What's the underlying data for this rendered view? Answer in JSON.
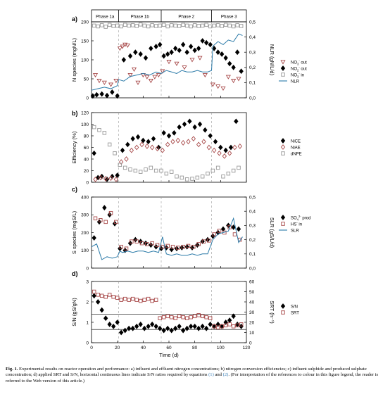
{
  "caption": {
    "label": "Fig. 1.",
    "text_before": " Experimental results on reactor operation and performance: a) influent and effluent nitrogen concentrations; b) nitrogen conversion efficiencies; c) influent sulphide and produced sulphate concentration; d) applied SRT and S/N, horizontal continuous lines indicate S/N ratios required by equations ",
    "ref1": "(1)",
    "and": " and ",
    "ref2": "(2)",
    "text_after": ". (For interpretation of the references to colour in this figure legend, the reader is referred to the Web version of this article.)"
  },
  "chart_data": [
    {
      "panel": "a)",
      "type": "scatter",
      "phases": [
        "Phase 1a",
        "Phase 1b",
        "Phase 2",
        "Phase 3"
      ],
      "phase_boundaries": [
        21,
        54,
        93
      ],
      "xlim": [
        0,
        120
      ],
      "xticks": [
        "0",
        "20",
        "40",
        "60",
        "80",
        "100",
        "120"
      ],
      "ylabel": "N species (mgN/L)",
      "ylim": [
        0,
        200
      ],
      "yticks": [
        "0",
        "50",
        "100",
        "150",
        "200"
      ],
      "y2label": "NLR (gN/L/d)",
      "y2lim": [
        0,
        0.5
      ],
      "y2ticks": [
        "0,0",
        "0,1",
        "0,2",
        "0,3",
        "0,4",
        "0,5"
      ],
      "legend": [
        "NO3- out",
        "NO2- out",
        "NO3- in",
        "NLR"
      ],
      "series": [
        {
          "name": "NO3- out",
          "marker": "triangle-down",
          "color": "#a84a4a",
          "x": [
            3,
            6,
            10,
            15,
            19,
            22,
            24,
            26,
            28,
            30,
            33,
            36,
            40,
            43,
            46,
            49,
            52,
            55,
            60,
            66,
            72,
            78,
            84,
            88,
            94,
            98,
            102,
            106,
            110,
            114
          ],
          "y": [
            60,
            45,
            40,
            35,
            45,
            130,
            135,
            140,
            138,
            60,
            75,
            40,
            60,
            55,
            45,
            55,
            60,
            70,
            95,
            90,
            80,
            100,
            105,
            60,
            35,
            30,
            25,
            55,
            45,
            50
          ]
        },
        {
          "name": "NO2- out",
          "marker": "diamond",
          "color": "#000000",
          "x": [
            1,
            4,
            8,
            12,
            16,
            20,
            25,
            30,
            34,
            38,
            42,
            46,
            50,
            53,
            56,
            59,
            62,
            65,
            68,
            71,
            74,
            77,
            80,
            83,
            86,
            89,
            92,
            95,
            98,
            101,
            104,
            107,
            110,
            113,
            116
          ],
          "y": [
            5,
            8,
            10,
            6,
            15,
            5,
            100,
            110,
            120,
            115,
            105,
            130,
            135,
            140,
            110,
            115,
            120,
            130,
            125,
            140,
            120,
            135,
            125,
            130,
            150,
            145,
            140,
            130,
            120,
            115,
            105,
            90,
            80,
            120,
            70
          ]
        },
        {
          "name": "NO3- in",
          "marker": "square",
          "color": "#9a9a9a",
          "x": [
            2,
            5,
            8,
            11,
            14,
            17,
            20,
            23,
            26,
            29,
            32,
            35,
            38,
            41,
            44,
            47,
            50,
            53,
            56,
            59,
            62,
            65,
            68,
            71,
            74,
            77,
            80,
            83,
            86,
            89,
            92,
            95,
            98,
            101,
            104,
            107,
            110,
            113,
            116
          ],
          "y": [
            190,
            188,
            191,
            187,
            192,
            189,
            190,
            188,
            192,
            190,
            191,
            189,
            193,
            190,
            188,
            191,
            189,
            190,
            192,
            188,
            191,
            190,
            189,
            192,
            190,
            188,
            191,
            189,
            190,
            192,
            188,
            190,
            191,
            189,
            192,
            190,
            188,
            191,
            189
          ]
        },
        {
          "name": "NLR",
          "line": true,
          "color": "#2b7aa8",
          "axis": "y2",
          "x": [
            0,
            5,
            10,
            15,
            20,
            21,
            25,
            30,
            35,
            40,
            45,
            50,
            54,
            58,
            62,
            66,
            70,
            74,
            78,
            82,
            86,
            90,
            93,
            94,
            98,
            102,
            106,
            110,
            114,
            117
          ],
          "y": [
            0.05,
            0.06,
            0.07,
            0.06,
            0.08,
            0.12,
            0.11,
            0.14,
            0.15,
            0.16,
            0.15,
            0.17,
            0.16,
            0.18,
            0.17,
            0.16,
            0.18,
            0.17,
            0.17,
            0.18,
            0.17,
            0.17,
            0.18,
            0.34,
            0.37,
            0.35,
            0.38,
            0.37,
            0.42,
            0.41
          ]
        }
      ]
    },
    {
      "panel": "b)",
      "type": "scatter",
      "xlim": [
        0,
        120
      ],
      "xticks": [
        "0",
        "20",
        "40",
        "60",
        "80",
        "100",
        "120"
      ],
      "ylabel": "Efficiency (%)",
      "ylim": [
        0,
        120
      ],
      "yticks": [
        "0",
        "20",
        "40",
        "60",
        "80",
        "100",
        "120"
      ],
      "legend": [
        "NiCE",
        "NiAE",
        "dNPE"
      ],
      "series": [
        {
          "name": "NiCE",
          "marker": "diamond",
          "color": "#000000",
          "x": [
            2,
            5,
            8,
            12,
            16,
            20,
            24,
            28,
            32,
            36,
            40,
            44,
            48,
            52,
            56,
            60,
            64,
            68,
            72,
            76,
            80,
            84,
            88,
            92,
            96,
            100,
            104,
            108,
            112
          ],
          "y": [
            50,
            8,
            10,
            5,
            10,
            12,
            55,
            65,
            75,
            78,
            72,
            70,
            75,
            60,
            85,
            80,
            85,
            95,
            100,
            105,
            95,
            100,
            90,
            80,
            70,
            60,
            55,
            60,
            105
          ]
        },
        {
          "name": "NiAE",
          "marker": "diamond-open",
          "color": "#a84a4a",
          "x": [
            3,
            7,
            11,
            15,
            19,
            23,
            27,
            31,
            35,
            39,
            43,
            47,
            51,
            55,
            59,
            63,
            67,
            71,
            75,
            79,
            83,
            87,
            91,
            95,
            99,
            103,
            107,
            111,
            115
          ],
          "y": [
            5,
            8,
            6,
            7,
            5,
            35,
            40,
            55,
            60,
            65,
            62,
            60,
            58,
            55,
            65,
            70,
            72,
            68,
            70,
            75,
            65,
            70,
            60,
            55,
            50,
            45,
            50,
            60,
            62
          ]
        },
        {
          "name": "dNPE",
          "marker": "square",
          "color": "#9a9a9a",
          "x": [
            2,
            6,
            10,
            14,
            18,
            22,
            26,
            30,
            34,
            38,
            42,
            46,
            50,
            54,
            58,
            62,
            66,
            70,
            74,
            78,
            82,
            86,
            90,
            94,
            98,
            102,
            106,
            110,
            114
          ],
          "y": [
            95,
            90,
            85,
            65,
            50,
            30,
            25,
            22,
            20,
            18,
            22,
            25,
            20,
            20,
            15,
            18,
            10,
            8,
            5,
            6,
            8,
            10,
            15,
            20,
            25,
            10,
            15,
            20,
            25
          ]
        }
      ]
    },
    {
      "panel": "c)",
      "type": "scatter",
      "xlim": [
        0,
        120
      ],
      "xticks": [
        "0",
        "20",
        "40",
        "60",
        "80",
        "100",
        "120"
      ],
      "ylabel": "S species (mgS/L)",
      "ylim": [
        0,
        400
      ],
      "yticks": [
        "0",
        "100",
        "200",
        "300",
        "400"
      ],
      "y2label": "SLR (gS/L/d)",
      "y2lim": [
        0,
        0.5
      ],
      "y2ticks": [
        "0,0",
        "0,1",
        "0,2",
        "0,3",
        "0,4",
        "0,5"
      ],
      "legend": [
        "SO4 2- prod",
        "HS- in",
        "SLR"
      ],
      "series": [
        {
          "name": "SO4 2- prod",
          "marker": "diamond",
          "color": "#000000",
          "x": [
            2,
            6,
            10,
            14,
            18,
            22,
            26,
            30,
            34,
            38,
            42,
            46,
            50,
            54,
            58,
            62,
            66,
            70,
            74,
            78,
            82,
            86,
            90,
            94,
            98,
            102,
            106,
            110,
            114
          ],
          "y": [
            170,
            260,
            340,
            300,
            250,
            110,
            100,
            140,
            160,
            150,
            140,
            130,
            120,
            110,
            115,
            105,
            110,
            115,
            120,
            115,
            130,
            150,
            160,
            180,
            200,
            220,
            240,
            230,
            220
          ]
        },
        {
          "name": "HS- in",
          "marker": "square",
          "color": "#a84a4a",
          "x": [
            3,
            7,
            11,
            15,
            19,
            23,
            27,
            31,
            35,
            39,
            43,
            47,
            51,
            55,
            59,
            63,
            67,
            71,
            75,
            79,
            83,
            87,
            91,
            95,
            99,
            103,
            107,
            111,
            115
          ],
          "y": [
            280,
            270,
            260,
            310,
            260,
            120,
            110,
            150,
            150,
            140,
            135,
            140,
            130,
            120,
            125,
            120,
            115,
            120,
            125,
            120,
            135,
            150,
            155,
            190,
            210,
            200,
            230,
            190,
            160
          ]
        },
        {
          "name": "SLR",
          "line": true,
          "color": "#2b7aa8",
          "axis": "y2",
          "x": [
            0,
            4,
            8,
            12,
            16,
            20,
            22,
            24,
            28,
            32,
            36,
            40,
            44,
            48,
            52,
            55,
            58,
            62,
            66,
            70,
            74,
            78,
            82,
            86,
            90,
            94,
            98,
            102,
            106,
            110,
            114,
            117
          ],
          "y": [
            0.15,
            0.17,
            0.06,
            0.08,
            0.07,
            0.08,
            0.12,
            0.11,
            0.12,
            0.11,
            0.12,
            0.12,
            0.11,
            0.12,
            0.11,
            0.22,
            0.1,
            0.09,
            0.1,
            0.09,
            0.09,
            0.1,
            0.09,
            0.1,
            0.1,
            0.2,
            0.24,
            0.25,
            0.26,
            0.35,
            0.18,
            0.22
          ]
        }
      ]
    },
    {
      "panel": "d)",
      "type": "scatter",
      "xlabel": "Time (d)",
      "xlim": [
        0,
        120
      ],
      "xticks": [
        "0",
        "20",
        "40",
        "60",
        "80",
        "100",
        "120"
      ],
      "ylabel": "S/N (gS/gN)",
      "ylim": [
        0,
        3
      ],
      "yticks": [
        "0",
        "1",
        "2",
        "3"
      ],
      "y2label": "SRT (h⁻¹)",
      "y2lim": [
        0,
        60
      ],
      "y2ticks": [
        "0",
        "10",
        "20",
        "30",
        "40",
        "50",
        "60"
      ],
      "hlines_s_n": [
        1.4,
        0.65
      ],
      "legend": [
        "S/N",
        "SRT"
      ],
      "series": [
        {
          "name": "S/N",
          "marker": "diamond",
          "color": "#000000",
          "x": [
            2,
            5,
            8,
            11,
            14,
            17,
            20,
            23,
            26,
            29,
            32,
            35,
            38,
            41,
            44,
            47,
            50,
            53,
            56,
            59,
            62,
            65,
            68,
            71,
            74,
            77,
            80,
            83,
            86,
            89,
            92,
            95,
            98,
            101,
            104,
            107,
            110,
            113,
            116
          ],
          "y": [
            2.3,
            2.0,
            1.6,
            1.2,
            0.9,
            0.8,
            1.0,
            0.5,
            0.6,
            0.7,
            0.7,
            0.8,
            0.9,
            0.7,
            0.8,
            0.9,
            0.8,
            0.7,
            0.6,
            0.7,
            0.6,
            0.7,
            0.8,
            0.6,
            0.7,
            0.8,
            0.8,
            0.7,
            0.8,
            0.7,
            0.9,
            0.8,
            0.9,
            0.8,
            1.0,
            1.1,
            1.3,
            0.9,
            0.8
          ]
        },
        {
          "name": "SRT",
          "marker": "square",
          "color": "#a84a4a",
          "axis": "y2",
          "x": [
            2,
            5,
            8,
            11,
            14,
            17,
            20,
            23,
            26,
            29,
            32,
            35,
            38,
            41,
            44,
            47,
            50,
            53,
            56,
            59,
            62,
            65,
            68,
            71,
            74,
            77,
            80,
            83,
            86,
            89,
            92,
            95,
            98,
            101,
            104,
            107,
            110,
            113,
            116
          ],
          "y": [
            50,
            47,
            46,
            45,
            47,
            45,
            44,
            42,
            43,
            42,
            43,
            42,
            41,
            42,
            43,
            41,
            42,
            24,
            25,
            26,
            25,
            24,
            26,
            25,
            24,
            25,
            26,
            27,
            26,
            25,
            24,
            16,
            15,
            16,
            17,
            18,
            16,
            17,
            18
          ]
        }
      ]
    }
  ]
}
